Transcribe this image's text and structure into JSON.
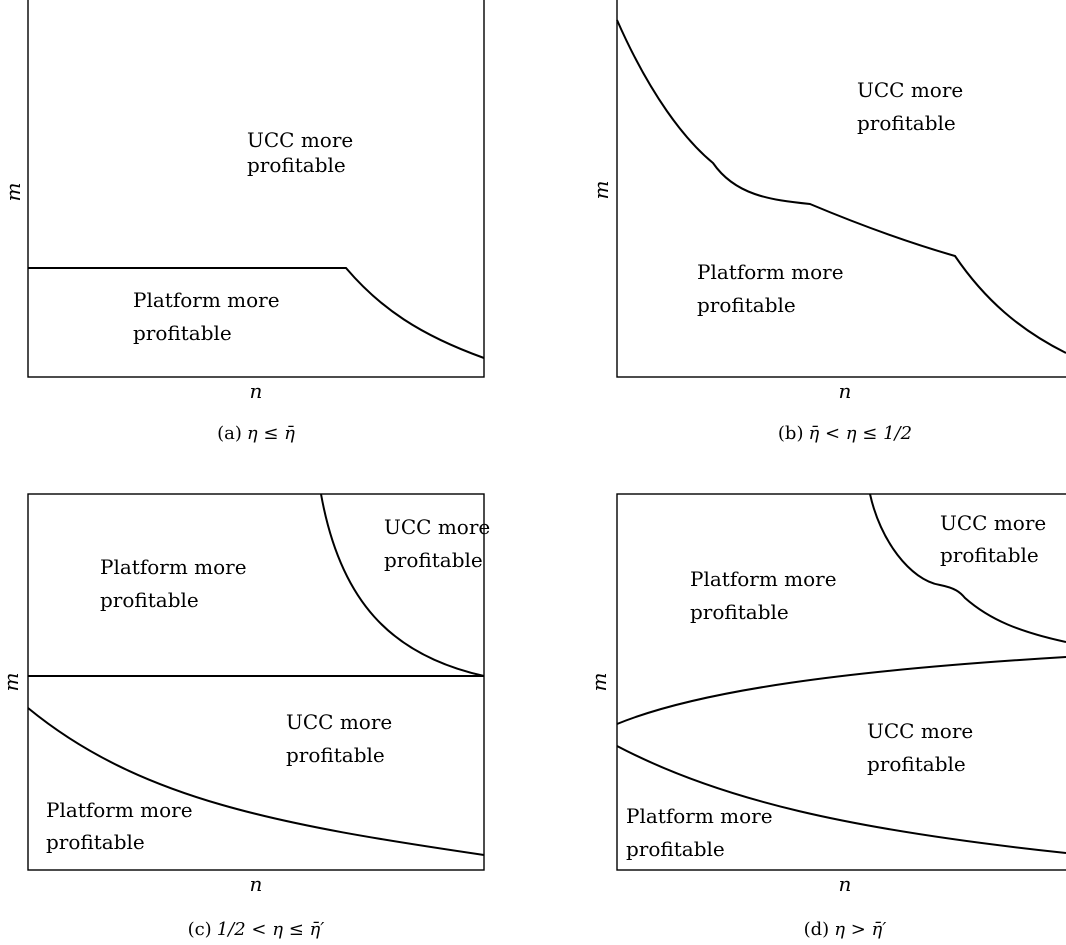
{
  "axes": {
    "x": "n",
    "y": "m"
  },
  "labels": {
    "ucc_line1": "UCC more",
    "ucc_line2": "profitable",
    "platform_line1": "Platform more",
    "platform_line2": "profitable"
  },
  "panels": [
    {
      "id": "a",
      "caption_prefix": "(a)",
      "caption": "η ≤ η̄"
    },
    {
      "id": "b",
      "caption_prefix": "(b)",
      "caption": "η̄ < η ≤ 1/2"
    },
    {
      "id": "c",
      "caption_prefix": "(c)",
      "caption": "1/2 < η ≤ η̄′"
    },
    {
      "id": "d",
      "caption_prefix": "(d)",
      "caption": "η > η̄′"
    }
  ]
}
